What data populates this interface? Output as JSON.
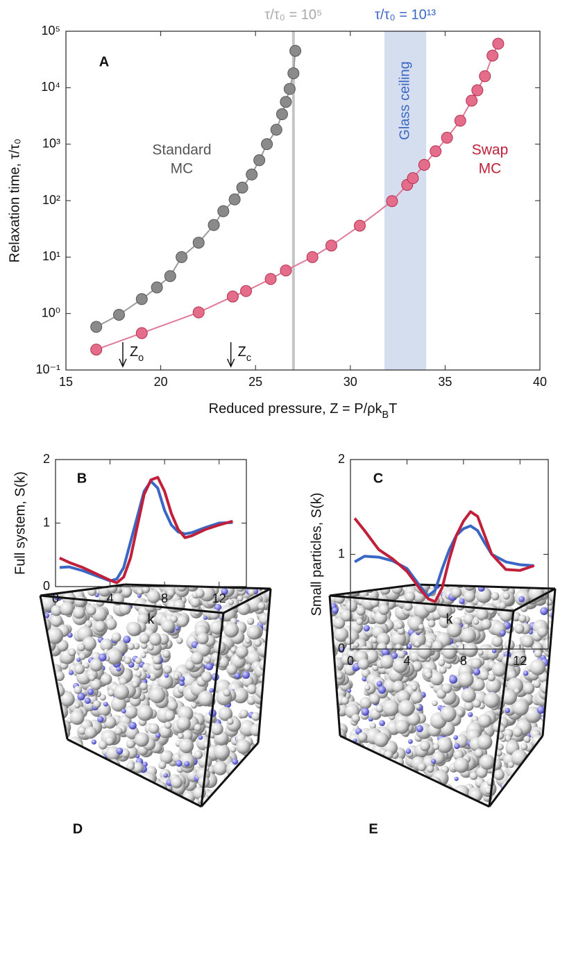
{
  "chart_data": [
    {
      "type": "line",
      "panel": "A",
      "markers": true,
      "ylog": true,
      "xlabel": [
        "Reduced pressure, Z = P/ρk",
        "B",
        "T"
      ],
      "ylabel": "Relaxation time, τ/τ₀",
      "xlim": [
        15,
        40
      ],
      "xticks": [
        15,
        20,
        25,
        30,
        35,
        40
      ],
      "ylim": [
        0.1,
        100000
      ],
      "yticks": [
        {
          "value": 0.1,
          "label": "10⁻¹"
        },
        {
          "value": 1,
          "label": "10⁰"
        },
        {
          "value": 10,
          "label": "10¹"
        },
        {
          "value": 100,
          "label": "10²"
        },
        {
          "value": 1000,
          "label": "10³"
        },
        {
          "value": 10000,
          "label": "10⁴"
        },
        {
          "value": 100000,
          "label": "10⁵"
        }
      ],
      "series": [
        {
          "name": [
            "Standard",
            "MC"
          ],
          "color": "#8a8a8a",
          "line_color": "#9a9a9a",
          "x": [
            16.6,
            17.8,
            19.0,
            19.8,
            20.5,
            21.1,
            22.0,
            22.8,
            23.3,
            23.9,
            24.3,
            24.8,
            25.2,
            25.6,
            26.1,
            26.4,
            26.6,
            26.8,
            27.0,
            27.1
          ],
          "values": [
            0.58,
            0.95,
            1.8,
            2.9,
            4.6,
            10,
            18,
            37,
            65,
            105,
            170,
            290,
            520,
            1000,
            1800,
            3400,
            5600,
            9500,
            18000,
            45000
          ]
        },
        {
          "name": [
            "Swap",
            "MC"
          ],
          "color": "#e36d8a",
          "line_color": "#e07a96",
          "x": [
            16.6,
            19.0,
            22.0,
            23.8,
            24.5,
            25.8,
            26.6,
            28.0,
            29.0,
            30.5,
            32.2,
            33.0,
            33.3,
            33.9,
            34.5,
            35.1,
            35.8,
            36.4,
            36.7,
            37.1,
            37.5,
            37.8
          ],
          "values": [
            0.23,
            0.45,
            1.05,
            2.0,
            2.5,
            4.1,
            5.8,
            10,
            16,
            36,
            98,
            190,
            250,
            430,
            750,
            1300,
            2600,
            5900,
            9000,
            16000,
            37000,
            60000
          ]
        }
      ],
      "vline": {
        "x": 27.0,
        "label": "τ/τ₀ = 10⁵"
      },
      "band": {
        "x": [
          31.8,
          34.0
        ],
        "label": "Glass ceiling",
        "top_label": "τ/τ₀ = 10¹³"
      },
      "arrows": [
        {
          "text": [
            "Z",
            "o"
          ],
          "x": 18.0
        },
        {
          "text": [
            "Z",
            "c"
          ],
          "x": 23.7
        }
      ]
    },
    {
      "type": "line",
      "panel": "B",
      "xlabel": "k",
      "ylabel": "Full system, S(k)",
      "xlim": [
        0,
        14
      ],
      "xticks": [
        0,
        4,
        8,
        12
      ],
      "ylim": [
        0,
        2
      ],
      "yticks": [
        0,
        1,
        2
      ],
      "x": [
        0.3,
        1,
        2,
        3,
        4,
        4.5,
        5,
        5.5,
        6,
        6.5,
        7,
        7.5,
        8,
        8.5,
        9,
        9.5,
        10,
        11,
        12,
        13
      ],
      "series": [
        {
          "color": "#3a66c4",
          "values": [
            0.3,
            0.31,
            0.25,
            0.17,
            0.09,
            0.12,
            0.3,
            0.7,
            1.1,
            1.5,
            1.66,
            1.55,
            1.2,
            0.97,
            0.86,
            0.83,
            0.85,
            0.93,
            1.0,
            1.01
          ]
        },
        {
          "color": "#c0203a",
          "values": [
            0.45,
            0.38,
            0.3,
            0.2,
            0.1,
            0.06,
            0.15,
            0.45,
            0.95,
            1.45,
            1.68,
            1.72,
            1.5,
            1.15,
            0.9,
            0.77,
            0.8,
            0.9,
            0.97,
            1.03
          ]
        }
      ]
    },
    {
      "type": "line",
      "panel": "C",
      "xlabel": "k",
      "ylabel": "Small particles, S(k)",
      "xlim": [
        0,
        14
      ],
      "xticks": [
        0,
        4,
        8,
        12
      ],
      "ylim": [
        0,
        2
      ],
      "yticks": [
        0,
        1,
        2
      ],
      "x": [
        0.3,
        1,
        2,
        3,
        4,
        5,
        5.5,
        6,
        6.5,
        7,
        7.5,
        8,
        8.5,
        9,
        9.5,
        10,
        11,
        12,
        13
      ],
      "series": [
        {
          "color": "#3a66c4",
          "values": [
            0.92,
            0.98,
            0.97,
            0.93,
            0.85,
            0.65,
            0.56,
            0.62,
            0.85,
            1.05,
            1.2,
            1.27,
            1.3,
            1.25,
            1.12,
            1.0,
            0.92,
            0.89,
            0.88
          ]
        },
        {
          "color": "#c0203a",
          "values": [
            1.38,
            1.25,
            1.05,
            0.95,
            0.82,
            0.62,
            0.53,
            0.5,
            0.65,
            0.95,
            1.2,
            1.35,
            1.45,
            1.4,
            1.2,
            1.0,
            0.84,
            0.83,
            0.88
          ]
        }
      ]
    }
  ],
  "images": [
    {
      "label": "D"
    },
    {
      "label": "E"
    }
  ]
}
